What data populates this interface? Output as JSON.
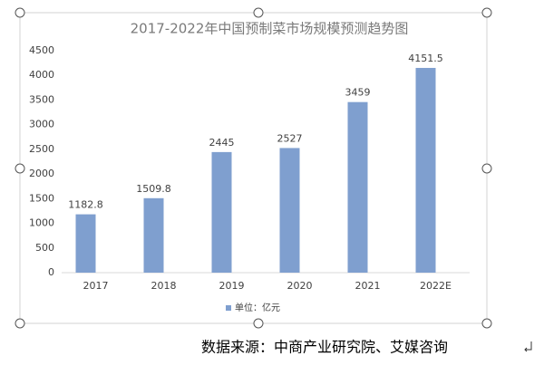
{
  "chart_data": {
    "type": "bar",
    "title": "2017-2022年中国预制菜市场规模预测趋势图",
    "categories": [
      "2017",
      "2018",
      "2019",
      "2020",
      "2021",
      "2022E"
    ],
    "series": [
      {
        "name": "单位：亿元",
        "color": "#7f9fcf",
        "values": [
          1182.8,
          1509.8,
          2445,
          2527,
          3459,
          4151.5
        ]
      }
    ],
    "ylim": [
      0,
      4500
    ],
    "yticks": [
      0,
      500,
      1000,
      1500,
      2000,
      2500,
      3000,
      3500,
      4000,
      4500
    ],
    "grid": false,
    "legend": "bottom"
  },
  "footer": {
    "source": "数据来源：中商产业研究院、艾媒咨询"
  }
}
